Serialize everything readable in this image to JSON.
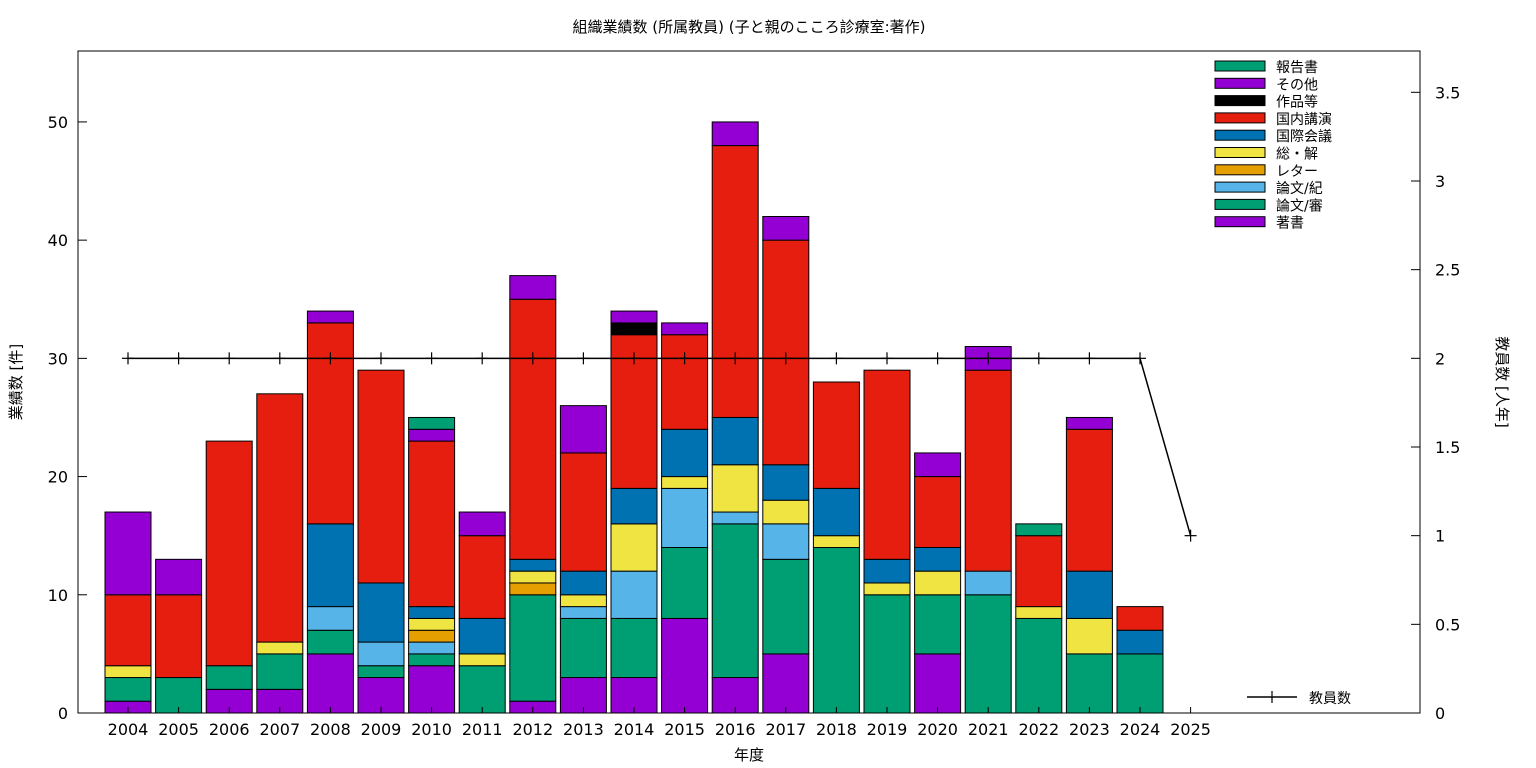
{
  "chart_data": {
    "type": "bar",
    "stacked": true,
    "title": "組織業績数 (所属教員) (子と親のこころ診療室:著作)",
    "xlabel": "年度",
    "ylabel": "業績数 [件]",
    "y2label": "教員数 [人年]",
    "ylim": [
      0,
      56
    ],
    "y2lim": [
      0,
      3.733
    ],
    "yticks": [
      0,
      10,
      20,
      30,
      40,
      50
    ],
    "y2ticks": [
      "0",
      "0.5",
      "1",
      "1.5",
      "2",
      "2.5",
      "3",
      "3.5"
    ],
    "grid": false,
    "legend_position": "top-right",
    "categories": [
      "2004",
      "2005",
      "2006",
      "2007",
      "2008",
      "2009",
      "2010",
      "2011",
      "2012",
      "2013",
      "2014",
      "2015",
      "2016",
      "2017",
      "2018",
      "2019",
      "2020",
      "2021",
      "2022",
      "2023",
      "2024",
      "2025"
    ],
    "series": [
      {
        "name": "著書",
        "color": "#9400d3",
        "values": [
          1,
          0,
          2,
          2,
          5,
          3,
          4,
          0,
          1,
          3,
          3,
          8,
          3,
          5,
          0,
          0,
          5,
          0,
          0,
          0,
          0,
          0
        ]
      },
      {
        "name": "論文/審",
        "color": "#009e73",
        "values": [
          2,
          3,
          2,
          3,
          2,
          1,
          1,
          4,
          9,
          5,
          5,
          6,
          13,
          8,
          14,
          10,
          5,
          10,
          8,
          5,
          5,
          0
        ]
      },
      {
        "name": "論文/紀",
        "color": "#56b4e9",
        "values": [
          0,
          0,
          0,
          0,
          2,
          2,
          1,
          0,
          0,
          1,
          4,
          5,
          1,
          3,
          0,
          0,
          0,
          2,
          0,
          0,
          0,
          0
        ]
      },
      {
        "name": "レター",
        "color": "#e69f00",
        "values": [
          0,
          0,
          0,
          0,
          0,
          0,
          1,
          0,
          1,
          0,
          0,
          0,
          0,
          0,
          0,
          0,
          0,
          0,
          0,
          0,
          0,
          0
        ]
      },
      {
        "name": "総・解",
        "color": "#f0e442",
        "values": [
          1,
          0,
          0,
          1,
          0,
          0,
          1,
          1,
          1,
          1,
          4,
          1,
          4,
          2,
          1,
          1,
          2,
          0,
          1,
          3,
          0,
          0
        ]
      },
      {
        "name": "国際会議",
        "color": "#0072b2",
        "values": [
          0,
          0,
          0,
          0,
          7,
          5,
          1,
          3,
          1,
          2,
          3,
          4,
          4,
          3,
          4,
          2,
          2,
          0,
          0,
          4,
          2,
          0
        ]
      },
      {
        "name": "国内講演",
        "color": "#e51e10",
        "values": [
          6,
          7,
          19,
          21,
          17,
          18,
          14,
          7,
          22,
          10,
          13,
          8,
          23,
          19,
          9,
          16,
          6,
          17,
          6,
          12,
          2,
          0
        ]
      },
      {
        "name": "作品等",
        "color": "#000000",
        "values": [
          0,
          0,
          0,
          0,
          0,
          0,
          0,
          0,
          0,
          0,
          1,
          0,
          0,
          0,
          0,
          0,
          0,
          0,
          0,
          0,
          0,
          0
        ]
      },
      {
        "name": "その他",
        "color": "#9400d3",
        "values": [
          7,
          3,
          0,
          0,
          1,
          0,
          1,
          2,
          2,
          4,
          1,
          1,
          2,
          2,
          0,
          0,
          2,
          2,
          0,
          1,
          0,
          0
        ]
      },
      {
        "name": "報告書",
        "color": "#009e73",
        "values": [
          0,
          0,
          0,
          0,
          0,
          0,
          1,
          0,
          0,
          0,
          0,
          0,
          0,
          0,
          0,
          0,
          0,
          0,
          1,
          0,
          0,
          0
        ]
      }
    ],
    "legend_order": [
      "報告書",
      "その他",
      "作品等",
      "国内講演",
      "国際会議",
      "総・解",
      "レター",
      "論文/紀",
      "論文/審",
      "著書"
    ],
    "line_series": {
      "name": "教員数",
      "color": "#000000",
      "axis": "y2",
      "values": [
        2,
        2,
        2,
        2,
        2,
        2,
        2,
        2,
        2,
        2,
        2,
        2,
        2,
        2,
        2,
        2,
        2,
        2,
        2,
        2,
        2,
        1
      ]
    }
  }
}
